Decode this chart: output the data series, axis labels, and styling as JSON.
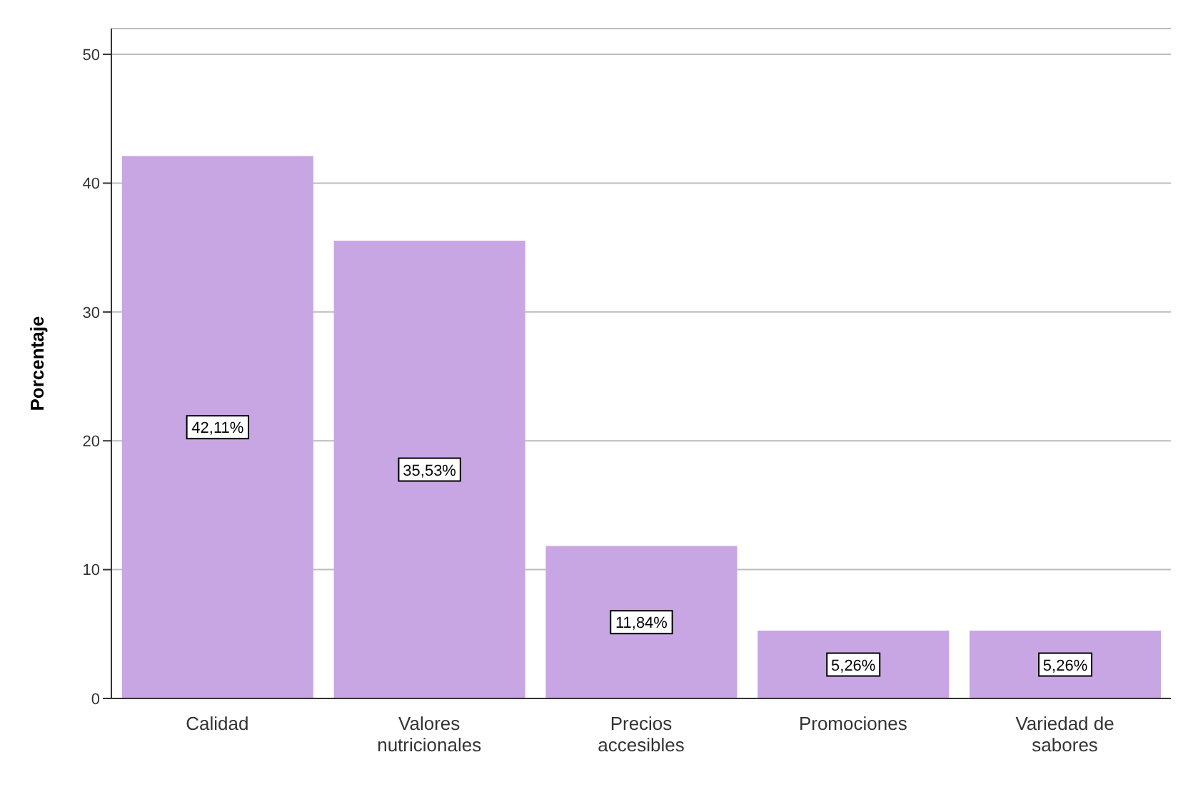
{
  "chart_data": {
    "type": "bar",
    "ylabel": "Porcentaje",
    "categories": [
      "Calidad",
      "Valores nutricionales",
      "Precios accesibles",
      "Promociones",
      "Variedad de sabores"
    ],
    "values": [
      42.11,
      35.53,
      11.84,
      5.26,
      5.26
    ],
    "value_labels": [
      "42,11%",
      "35,53%",
      "11,84%",
      "5,26%",
      "5,26%"
    ],
    "color": "#c8a5e3",
    "ylim": [
      0,
      52
    ],
    "yticks": [
      0,
      10,
      20,
      30,
      40,
      50
    ],
    "grid": "y"
  }
}
